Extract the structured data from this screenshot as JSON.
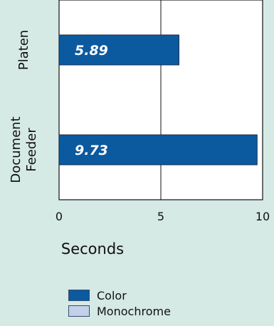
{
  "chart_data": {
    "type": "bar",
    "orientation": "horizontal",
    "categories": [
      [
        "Platen"
      ],
      [
        "Document",
        "Feeder"
      ]
    ],
    "series": [
      {
        "name": "Color",
        "values": [
          5.89,
          9.73
        ],
        "labels": [
          "5.89",
          "9.73"
        ]
      },
      {
        "name": "Monochrome",
        "values": [
          null,
          null
        ]
      }
    ],
    "xlabel": "Seconds",
    "xlim": [
      0,
      10
    ],
    "xticks": [
      "0",
      "5",
      "10"
    ],
    "grid": true,
    "legend_position": "bottom-left"
  },
  "colors": {
    "background": "#d5e9e5",
    "plot_background": "#ffffff",
    "color_series": "#0b5aa0",
    "monochrome_series": "#c4cfe9",
    "axis": "#111111"
  },
  "legend": {
    "items": [
      {
        "label": "Color",
        "color": "#0b5aa0"
      },
      {
        "label": "Monochrome",
        "color": "#c4cfe9"
      }
    ]
  }
}
